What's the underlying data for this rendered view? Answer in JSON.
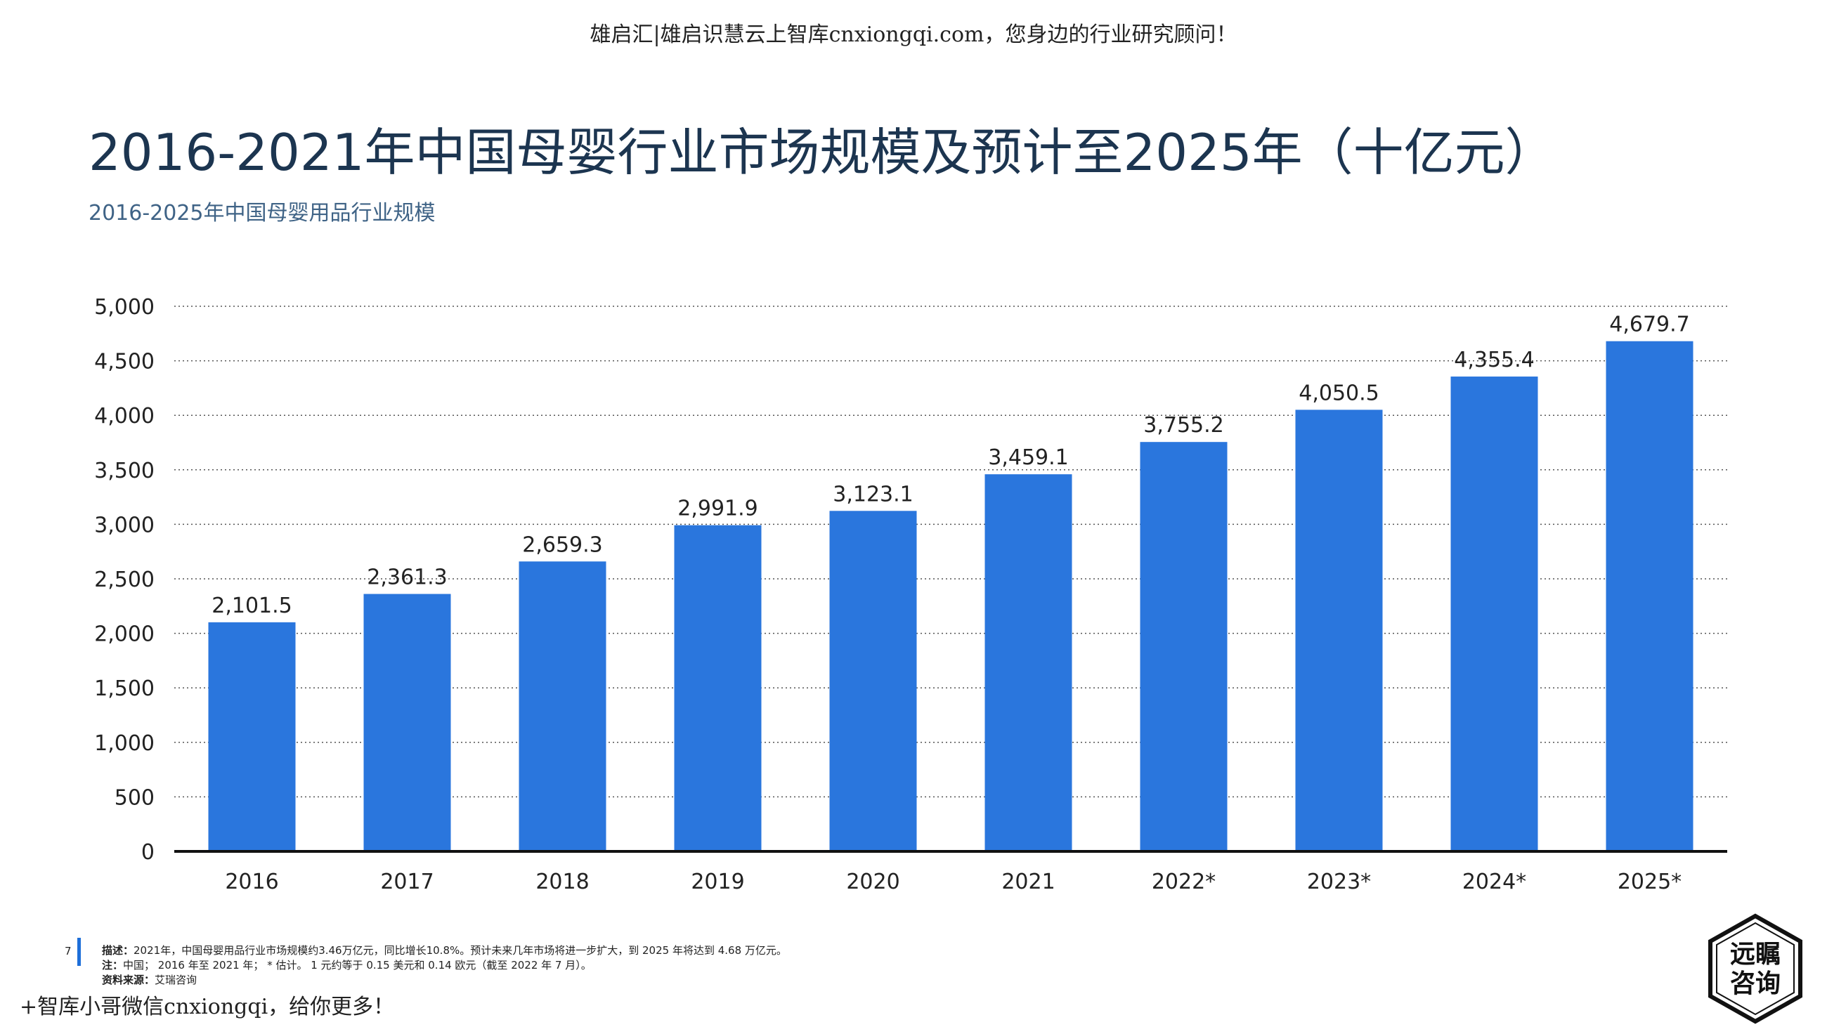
{
  "header": {
    "watermark": "雄启汇|雄启识慧云上智库cnxiongqi.com，您身边的行业研究顾问！"
  },
  "page": {
    "title": "2016-2021年中国母婴行业市场规模及预计至2025年（十亿元）",
    "subtitle": "2016-2025年中国母婴用品行业规模"
  },
  "chart_data": {
    "type": "bar",
    "title": "2016-2021年中国母婴行业市场规模及预计至2025年（十亿元）",
    "subtitle": "2016-2025年中国母婴用品行业规模",
    "categories": [
      "2016",
      "2017",
      "2018",
      "2019",
      "2020",
      "2021",
      "2022*",
      "2023*",
      "2024*",
      "2025*"
    ],
    "values": [
      2101.5,
      2361.3,
      2659.3,
      2991.9,
      3123.1,
      3459.1,
      3755.2,
      4050.5,
      4355.4,
      4679.7
    ],
    "value_labels": [
      "2,101.5",
      "2,361.3",
      "2,659.3",
      "2,991.9",
      "3,123.1",
      "3,459.1",
      "3,755.2",
      "4,050.5",
      "4,355.4",
      "4,679.7"
    ],
    "y_ticks": [
      "0",
      "500",
      "1,000",
      "1,500",
      "2,000",
      "2,500",
      "3,000",
      "3,500",
      "4,000",
      "4,500",
      "5,000"
    ],
    "ylim": [
      0,
      5000
    ],
    "xlabel": "",
    "ylabel": "",
    "grid": true,
    "bar_color": "#2a76dd"
  },
  "footer": {
    "page_number": "7",
    "desc_label": "描述：",
    "desc_text": "2021年，中国母婴用品行业市场规模约3.46万亿元，同比增长10.8%。预计未来几年市场将进一步扩大，到 2025 年将达到 4.68 万亿元。",
    "note_label": "注：",
    "note_text": "中国； 2016 年至 2021 年； * 估计。 1 元约等于 0.15 美元和 0.14 欧元（截至 2022 年 7 月）。",
    "source_label": "资料来源：",
    "source_text": "艾瑞咨询",
    "watermark": "+智库小哥微信cnxiongqi，给你更多！"
  },
  "logo": {
    "line1": "远瞩",
    "line2": "咨询"
  }
}
